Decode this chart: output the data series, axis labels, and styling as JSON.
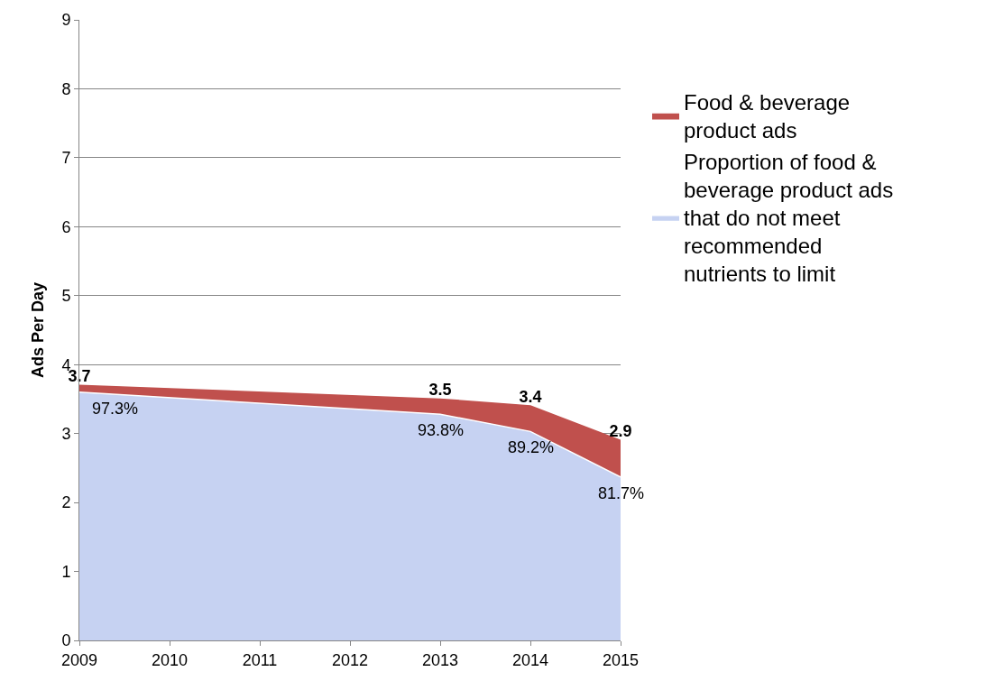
{
  "chart_data": {
    "type": "area",
    "ylabel": "Ads Per Day",
    "x": [
      2009,
      2013,
      2014,
      2015
    ],
    "series": [
      {
        "name": "Food & beverage product ads",
        "color": "#c0504d",
        "values": [
          3.7,
          3.5,
          3.4,
          2.9
        ],
        "value_labels": [
          "3.7",
          "3.5",
          "3.4",
          "2.9"
        ]
      },
      {
        "name": "Proportion of food & beverage product ads that do not meet recommended nutrients to limit",
        "color": "#c6d2f2",
        "values": [
          3.6,
          3.28,
          3.03,
          2.37
        ]
      }
    ],
    "annotations": [
      {
        "text": "97.3%",
        "x": 2009,
        "y": 3.6
      },
      {
        "text": "93.8%",
        "x": 2013,
        "y": 3.28
      },
      {
        "text": "89.2%",
        "x": 2014,
        "y": 3.03
      },
      {
        "text": "81.7%",
        "x": 2015,
        "y": 2.37
      }
    ],
    "xlim": [
      2009,
      2015
    ],
    "xticks": [
      2009,
      2010,
      2011,
      2012,
      2013,
      2014,
      2015
    ],
    "ylim": [
      0,
      9
    ],
    "yticks": [
      0,
      1,
      2,
      3,
      4,
      5,
      6,
      7,
      8,
      9
    ],
    "grid": "y",
    "legend": "right"
  }
}
